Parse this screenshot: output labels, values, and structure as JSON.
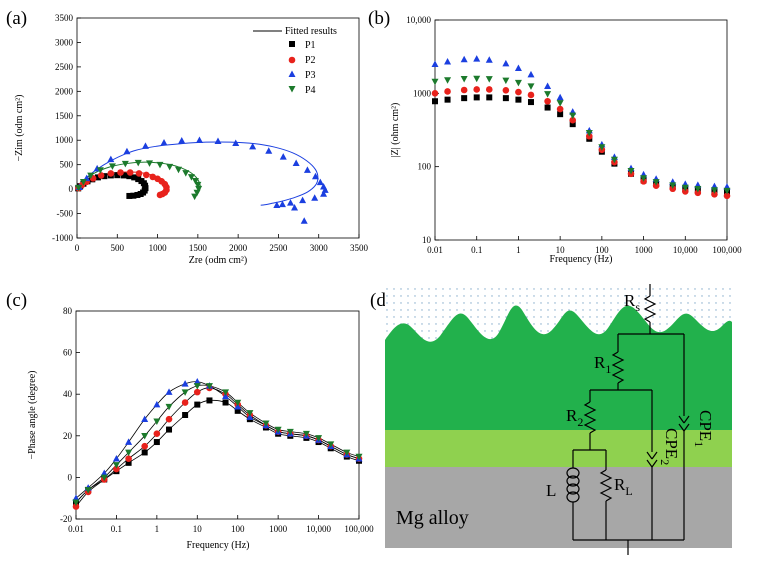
{
  "colors": {
    "P1": "#000000",
    "P2": "#e8221c",
    "P3": "#1b3fe0",
    "P4": "#1c7a2c"
  },
  "panels": {
    "a": "(a)",
    "b": "(b)",
    "c": "(c)",
    "d": "(d)"
  },
  "legend": {
    "fitted": "Fitted results",
    "P1": "P1",
    "P2": "P2",
    "P3": "P3",
    "P4": "P4"
  },
  "axes": {
    "a": {
      "xlabel": "Zre (odm cm²)",
      "ylabel": "−Zim (odm cm²)"
    },
    "b": {
      "xlabel": "Frequency (Hz)",
      "ylabel": "|Z| (ohm cm²)"
    },
    "c": {
      "xlabel": "Frequency (Hz)",
      "ylabel": "−Phase angle (degree)"
    }
  },
  "circuit": {
    "rs_main": "R",
    "rs_sub": "s",
    "r1_main": "R",
    "r1_sub": "1",
    "r2_main": "R",
    "r2_sub": "2",
    "rl_main": "R",
    "rl_sub": "L",
    "l_main": "L",
    "cpe1_main": "CPE",
    "cpe1_sub": "1",
    "cpe2_main": "CPE",
    "cpe2_sub": "2",
    "substrate": "Mg alloy"
  },
  "chart_data": [
    {
      "id": "a",
      "type": "scatter",
      "xlabel": "Zre (odm cm²)",
      "ylabel": "−Zim (odm cm²)",
      "xlim": [
        0,
        3500
      ],
      "ylim": [
        -1000,
        3500
      ],
      "xticks": [
        0,
        500,
        1000,
        1500,
        2000,
        2500,
        3000,
        3500
      ],
      "xtick_labels": [
        "0",
        "500",
        "1000",
        "1500",
        "2000",
        "2500",
        "3000",
        "3500"
      ],
      "yticks": [
        -1000,
        -500,
        0,
        500,
        1000,
        1500,
        2000,
        2500,
        3000,
        3500
      ],
      "ytick_labels": [
        "-1000",
        "-500",
        "0",
        "500",
        "1000",
        "1500",
        "2000",
        "2500",
        "3000",
        "3500"
      ],
      "legend_position": "top-right",
      "series": [
        {
          "name": "P1",
          "marker": "square",
          "x": [
            15,
            40,
            80,
            130,
            190,
            260,
            340,
            420,
            500,
            580,
            650,
            710,
            760,
            800,
            830,
            845,
            850,
            840,
            820,
            790,
            750,
            700,
            650
          ],
          "y": [
            15,
            60,
            110,
            160,
            200,
            240,
            265,
            280,
            285,
            280,
            265,
            240,
            205,
            165,
            120,
            70,
            20,
            -30,
            -70,
            -100,
            -120,
            -135,
            -140
          ]
        },
        {
          "name": "P2",
          "marker": "circle",
          "x": [
            20,
            60,
            120,
            200,
            300,
            420,
            540,
            660,
            770,
            860,
            940,
            1000,
            1050,
            1090,
            1110,
            1110,
            1090,
            1060,
            1030
          ],
          "y": [
            20,
            80,
            150,
            220,
            280,
            320,
            340,
            340,
            320,
            290,
            250,
            210,
            160,
            100,
            40,
            -20,
            -70,
            -100,
            -120
          ]
        },
        {
          "name": "P3",
          "marker": "triangle",
          "x": [
            30,
            120,
            250,
            420,
            620,
            850,
            1080,
            1300,
            1520,
            1750,
            1970,
            2180,
            2380,
            2560,
            2720,
            2860,
            2960,
            3020,
            3060,
            3080,
            3060,
            2950,
            2800,
            2650,
            2550,
            2480,
            2700,
            2820
          ],
          "y": [
            40,
            220,
            420,
            610,
            770,
            880,
            950,
            990,
            1000,
            980,
            940,
            870,
            780,
            660,
            530,
            390,
            260,
            140,
            50,
            -20,
            -100,
            -180,
            -230,
            -280,
            -310,
            -330,
            -380,
            -650
          ]
        },
        {
          "name": "P4",
          "marker": "triangle-down",
          "x": [
            20,
            80,
            170,
            290,
            440,
            600,
            760,
            900,
            1030,
            1150,
            1260,
            1350,
            1420,
            1470,
            1500,
            1510,
            1490,
            1460
          ],
          "y": [
            30,
            150,
            280,
            390,
            470,
            520,
            540,
            530,
            500,
            460,
            400,
            330,
            250,
            170,
            90,
            10,
            -70,
            -150
          ]
        }
      ],
      "fitted_curves": [
        {
          "series": "P1",
          "x": [
            0,
            30,
            100,
            200,
            320,
            450,
            580,
            690,
            780,
            840,
            870,
            870,
            850,
            810,
            760,
            700,
            640
          ],
          "y": [
            0,
            90,
            180,
            250,
            285,
            295,
            280,
            240,
            180,
            110,
            40,
            -30,
            -80,
            -110,
            -130,
            -140,
            -145
          ]
        },
        {
          "series": "P2",
          "x": [
            0,
            60,
            180,
            330,
            500,
            670,
            820,
            950,
            1050,
            1110,
            1140,
            1130,
            1100,
            1060,
            1020
          ],
          "y": [
            0,
            100,
            210,
            290,
            340,
            350,
            330,
            280,
            210,
            130,
            40,
            -40,
            -90,
            -120,
            -130
          ]
        },
        {
          "series": "P3",
          "x": [
            0,
            150,
            400,
            700,
            1000,
            1300,
            1600,
            1900,
            2200,
            2450,
            2680,
            2850,
            2960,
            2990,
            2960,
            2860,
            2720,
            2560,
            2420,
            2330,
            2280
          ],
          "y": [
            0,
            280,
            560,
            780,
            880,
            930,
            960,
            960,
            930,
            860,
            740,
            580,
            400,
            230,
            80,
            -60,
            -160,
            -240,
            -290,
            -320,
            -330
          ]
        },
        {
          "series": "P4",
          "x": [
            0,
            80,
            220,
            400,
            600,
            800,
            990,
            1160,
            1300,
            1410,
            1480,
            1520,
            1530,
            1510,
            1480,
            1450
          ],
          "y": [
            0,
            170,
            330,
            450,
            520,
            550,
            540,
            500,
            430,
            340,
            240,
            130,
            30,
            -60,
            -130,
            -170
          ]
        }
      ]
    },
    {
      "id": "b",
      "type": "scatter",
      "xlabel": "Frequency (Hz)",
      "ylabel": "|Z| (ohm cm²)",
      "xscale": "log",
      "yscale": "log",
      "xlim": [
        0.01,
        100000
      ],
      "ylim": [
        10,
        10000
      ],
      "xticks": [
        0.01,
        0.1,
        1,
        10,
        100,
        1000,
        10000,
        100000
      ],
      "xtick_labels": [
        "0.01",
        "0.1",
        "1",
        "10",
        "100",
        "1000",
        "10,000",
        "100,000"
      ],
      "yticks": [
        10,
        100,
        1000,
        10000
      ],
      "ytick_labels": [
        "10",
        "100",
        "1000",
        "10,000"
      ],
      "series": [
        {
          "name": "P1",
          "marker": "square",
          "freq": [
            0.01,
            0.02,
            0.05,
            0.1,
            0.2,
            0.5,
            1,
            2,
            5,
            10,
            20,
            50,
            100,
            200,
            500,
            1000,
            2000,
            5000,
            10000,
            20000,
            50000,
            100000
          ],
          "z": [
            780,
            820,
            860,
            880,
            880,
            860,
            820,
            760,
            640,
            520,
            380,
            240,
            160,
            110,
            80,
            65,
            58,
            53,
            50,
            48,
            46,
            45
          ]
        },
        {
          "name": "P2",
          "marker": "circle",
          "freq": [
            0.01,
            0.02,
            0.05,
            0.1,
            0.2,
            0.5,
            1,
            2,
            5,
            10,
            20,
            50,
            100,
            200,
            500,
            1000,
            2000,
            5000,
            10000,
            20000,
            50000,
            100000
          ],
          "z": [
            1000,
            1060,
            1110,
            1130,
            1130,
            1100,
            1040,
            950,
            780,
            610,
            430,
            260,
            170,
            115,
            80,
            63,
            55,
            50,
            46,
            44,
            42,
            40
          ]
        },
        {
          "name": "P3",
          "marker": "triangle",
          "freq": [
            0.01,
            0.02,
            0.05,
            0.1,
            0.2,
            0.5,
            1,
            2,
            5,
            10,
            20,
            50,
            100,
            200,
            500,
            1000,
            2000,
            5000,
            10000,
            20000,
            50000,
            100000
          ],
          "z": [
            2500,
            2700,
            2900,
            2950,
            2850,
            2550,
            2200,
            1800,
            1250,
            880,
            560,
            310,
            200,
            135,
            95,
            78,
            68,
            62,
            58,
            56,
            54,
            53
          ]
        },
        {
          "name": "P4",
          "marker": "triangle-down",
          "freq": [
            0.01,
            0.02,
            0.05,
            0.1,
            0.2,
            0.5,
            1,
            2,
            5,
            10,
            20,
            50,
            100,
            200,
            500,
            1000,
            2000,
            5000,
            10000,
            20000,
            50000,
            100000
          ],
          "z": [
            1450,
            1520,
            1580,
            1590,
            1570,
            1500,
            1400,
            1250,
            980,
            740,
            500,
            290,
            185,
            125,
            88,
            70,
            62,
            56,
            52,
            50,
            48,
            47
          ]
        }
      ]
    },
    {
      "id": "c",
      "type": "scatter",
      "xlabel": "Frequency (Hz)",
      "ylabel": "−Phase angle (degree)",
      "xscale": "log",
      "xlim": [
        0.01,
        100000
      ],
      "ylim": [
        -20,
        80
      ],
      "xticks": [
        0.01,
        0.1,
        1,
        10,
        100,
        1000,
        10000,
        100000
      ],
      "xtick_labels": [
        "0.01",
        "0.1",
        "1",
        "10",
        "100",
        "1000",
        "10,000",
        "100,000"
      ],
      "yticks": [
        -20,
        0,
        20,
        40,
        60,
        80
      ],
      "ytick_labels": [
        "-20",
        "0",
        "20",
        "40",
        "60",
        "80"
      ],
      "series": [
        {
          "name": "P1",
          "marker": "square",
          "freq": [
            0.01,
            0.02,
            0.05,
            0.1,
            0.2,
            0.5,
            1,
            2,
            5,
            10,
            20,
            50,
            100,
            200,
            500,
            1000,
            2000,
            5000,
            10000,
            20000,
            50000,
            100000
          ],
          "deg": [
            -12,
            -6,
            -1,
            3,
            7,
            12,
            17,
            23,
            30,
            35,
            37,
            36,
            32,
            28,
            24,
            21,
            20,
            19,
            17,
            14,
            10,
            8
          ]
        },
        {
          "name": "P2",
          "marker": "circle",
          "freq": [
            0.01,
            0.02,
            0.05,
            0.1,
            0.2,
            0.5,
            1,
            2,
            5,
            10,
            20,
            50,
            100,
            200,
            500,
            1000,
            2000,
            5000,
            10000,
            20000,
            50000,
            100000
          ],
          "deg": [
            -14,
            -7,
            -1,
            4,
            9,
            15,
            21,
            28,
            36,
            41,
            43,
            40,
            35,
            30,
            25,
            22,
            21,
            20,
            18,
            15,
            11,
            9
          ]
        },
        {
          "name": "P3",
          "marker": "triangle",
          "freq": [
            0.01,
            0.02,
            0.05,
            0.1,
            0.2,
            0.5,
            1,
            2,
            5,
            10,
            20,
            50,
            100,
            200,
            500,
            1000,
            2000,
            5000,
            10000,
            20000,
            50000,
            100000
          ],
          "deg": [
            -10,
            -5,
            2,
            9,
            17,
            28,
            35,
            41,
            45,
            46,
            44,
            39,
            34,
            29,
            25,
            22,
            21,
            20,
            18,
            15,
            11,
            9
          ]
        },
        {
          "name": "P4",
          "marker": "triangle-down",
          "freq": [
            0.01,
            0.02,
            0.05,
            0.1,
            0.2,
            0.5,
            1,
            2,
            5,
            10,
            20,
            50,
            100,
            200,
            500,
            1000,
            2000,
            5000,
            10000,
            20000,
            50000,
            100000
          ],
          "deg": [
            -12,
            -6,
            0,
            6,
            12,
            20,
            27,
            34,
            41,
            44,
            44,
            41,
            36,
            31,
            26,
            23,
            22,
            21,
            19,
            16,
            12,
            10
          ]
        }
      ]
    }
  ]
}
